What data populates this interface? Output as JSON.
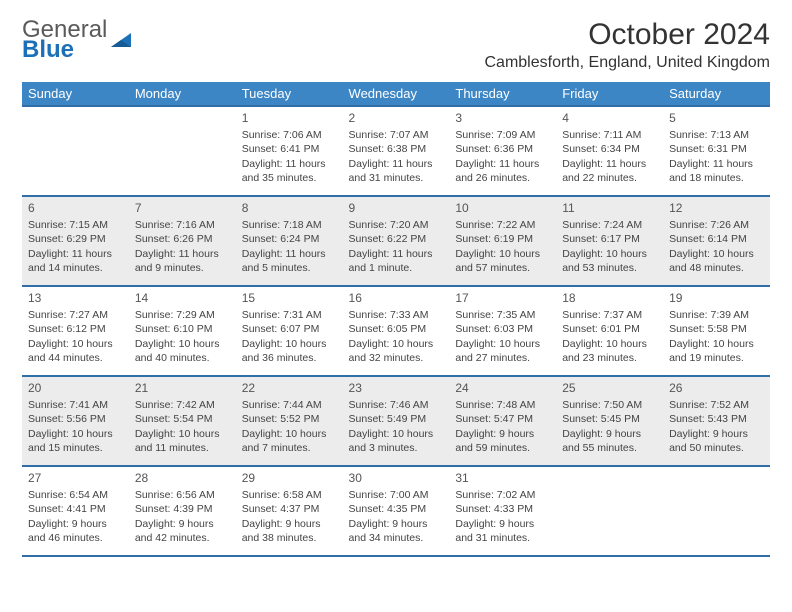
{
  "logo": {
    "top": "General",
    "bottom": "Blue"
  },
  "title": "October 2024",
  "location": "Camblesforth, England, United Kingdom",
  "colors": {
    "header_bg": "#3d86c6",
    "header_border": "#2f6ea6",
    "alt_row_bg": "#ececec",
    "text": "#333333",
    "logo_gray": "#5a5a5a",
    "logo_blue": "#1c70b8"
  },
  "day_headers": [
    "Sunday",
    "Monday",
    "Tuesday",
    "Wednesday",
    "Thursday",
    "Friday",
    "Saturday"
  ],
  "weeks": [
    {
      "alt": false,
      "days": [
        null,
        null,
        {
          "n": "1",
          "sr": "Sunrise: 7:06 AM",
          "ss": "Sunset: 6:41 PM",
          "dl": "Daylight: 11 hours and 35 minutes."
        },
        {
          "n": "2",
          "sr": "Sunrise: 7:07 AM",
          "ss": "Sunset: 6:38 PM",
          "dl": "Daylight: 11 hours and 31 minutes."
        },
        {
          "n": "3",
          "sr": "Sunrise: 7:09 AM",
          "ss": "Sunset: 6:36 PM",
          "dl": "Daylight: 11 hours and 26 minutes."
        },
        {
          "n": "4",
          "sr": "Sunrise: 7:11 AM",
          "ss": "Sunset: 6:34 PM",
          "dl": "Daylight: 11 hours and 22 minutes."
        },
        {
          "n": "5",
          "sr": "Sunrise: 7:13 AM",
          "ss": "Sunset: 6:31 PM",
          "dl": "Daylight: 11 hours and 18 minutes."
        }
      ]
    },
    {
      "alt": true,
      "days": [
        {
          "n": "6",
          "sr": "Sunrise: 7:15 AM",
          "ss": "Sunset: 6:29 PM",
          "dl": "Daylight: 11 hours and 14 minutes."
        },
        {
          "n": "7",
          "sr": "Sunrise: 7:16 AM",
          "ss": "Sunset: 6:26 PM",
          "dl": "Daylight: 11 hours and 9 minutes."
        },
        {
          "n": "8",
          "sr": "Sunrise: 7:18 AM",
          "ss": "Sunset: 6:24 PM",
          "dl": "Daylight: 11 hours and 5 minutes."
        },
        {
          "n": "9",
          "sr": "Sunrise: 7:20 AM",
          "ss": "Sunset: 6:22 PM",
          "dl": "Daylight: 11 hours and 1 minute."
        },
        {
          "n": "10",
          "sr": "Sunrise: 7:22 AM",
          "ss": "Sunset: 6:19 PM",
          "dl": "Daylight: 10 hours and 57 minutes."
        },
        {
          "n": "11",
          "sr": "Sunrise: 7:24 AM",
          "ss": "Sunset: 6:17 PM",
          "dl": "Daylight: 10 hours and 53 minutes."
        },
        {
          "n": "12",
          "sr": "Sunrise: 7:26 AM",
          "ss": "Sunset: 6:14 PM",
          "dl": "Daylight: 10 hours and 48 minutes."
        }
      ]
    },
    {
      "alt": false,
      "days": [
        {
          "n": "13",
          "sr": "Sunrise: 7:27 AM",
          "ss": "Sunset: 6:12 PM",
          "dl": "Daylight: 10 hours and 44 minutes."
        },
        {
          "n": "14",
          "sr": "Sunrise: 7:29 AM",
          "ss": "Sunset: 6:10 PM",
          "dl": "Daylight: 10 hours and 40 minutes."
        },
        {
          "n": "15",
          "sr": "Sunrise: 7:31 AM",
          "ss": "Sunset: 6:07 PM",
          "dl": "Daylight: 10 hours and 36 minutes."
        },
        {
          "n": "16",
          "sr": "Sunrise: 7:33 AM",
          "ss": "Sunset: 6:05 PM",
          "dl": "Daylight: 10 hours and 32 minutes."
        },
        {
          "n": "17",
          "sr": "Sunrise: 7:35 AM",
          "ss": "Sunset: 6:03 PM",
          "dl": "Daylight: 10 hours and 27 minutes."
        },
        {
          "n": "18",
          "sr": "Sunrise: 7:37 AM",
          "ss": "Sunset: 6:01 PM",
          "dl": "Daylight: 10 hours and 23 minutes."
        },
        {
          "n": "19",
          "sr": "Sunrise: 7:39 AM",
          "ss": "Sunset: 5:58 PM",
          "dl": "Daylight: 10 hours and 19 minutes."
        }
      ]
    },
    {
      "alt": true,
      "days": [
        {
          "n": "20",
          "sr": "Sunrise: 7:41 AM",
          "ss": "Sunset: 5:56 PM",
          "dl": "Daylight: 10 hours and 15 minutes."
        },
        {
          "n": "21",
          "sr": "Sunrise: 7:42 AM",
          "ss": "Sunset: 5:54 PM",
          "dl": "Daylight: 10 hours and 11 minutes."
        },
        {
          "n": "22",
          "sr": "Sunrise: 7:44 AM",
          "ss": "Sunset: 5:52 PM",
          "dl": "Daylight: 10 hours and 7 minutes."
        },
        {
          "n": "23",
          "sr": "Sunrise: 7:46 AM",
          "ss": "Sunset: 5:49 PM",
          "dl": "Daylight: 10 hours and 3 minutes."
        },
        {
          "n": "24",
          "sr": "Sunrise: 7:48 AM",
          "ss": "Sunset: 5:47 PM",
          "dl": "Daylight: 9 hours and 59 minutes."
        },
        {
          "n": "25",
          "sr": "Sunrise: 7:50 AM",
          "ss": "Sunset: 5:45 PM",
          "dl": "Daylight: 9 hours and 55 minutes."
        },
        {
          "n": "26",
          "sr": "Sunrise: 7:52 AM",
          "ss": "Sunset: 5:43 PM",
          "dl": "Daylight: 9 hours and 50 minutes."
        }
      ]
    },
    {
      "alt": false,
      "days": [
        {
          "n": "27",
          "sr": "Sunrise: 6:54 AM",
          "ss": "Sunset: 4:41 PM",
          "dl": "Daylight: 9 hours and 46 minutes."
        },
        {
          "n": "28",
          "sr": "Sunrise: 6:56 AM",
          "ss": "Sunset: 4:39 PM",
          "dl": "Daylight: 9 hours and 42 minutes."
        },
        {
          "n": "29",
          "sr": "Sunrise: 6:58 AM",
          "ss": "Sunset: 4:37 PM",
          "dl": "Daylight: 9 hours and 38 minutes."
        },
        {
          "n": "30",
          "sr": "Sunrise: 7:00 AM",
          "ss": "Sunset: 4:35 PM",
          "dl": "Daylight: 9 hours and 34 minutes."
        },
        {
          "n": "31",
          "sr": "Sunrise: 7:02 AM",
          "ss": "Sunset: 4:33 PM",
          "dl": "Daylight: 9 hours and 31 minutes."
        },
        null,
        null
      ]
    }
  ]
}
